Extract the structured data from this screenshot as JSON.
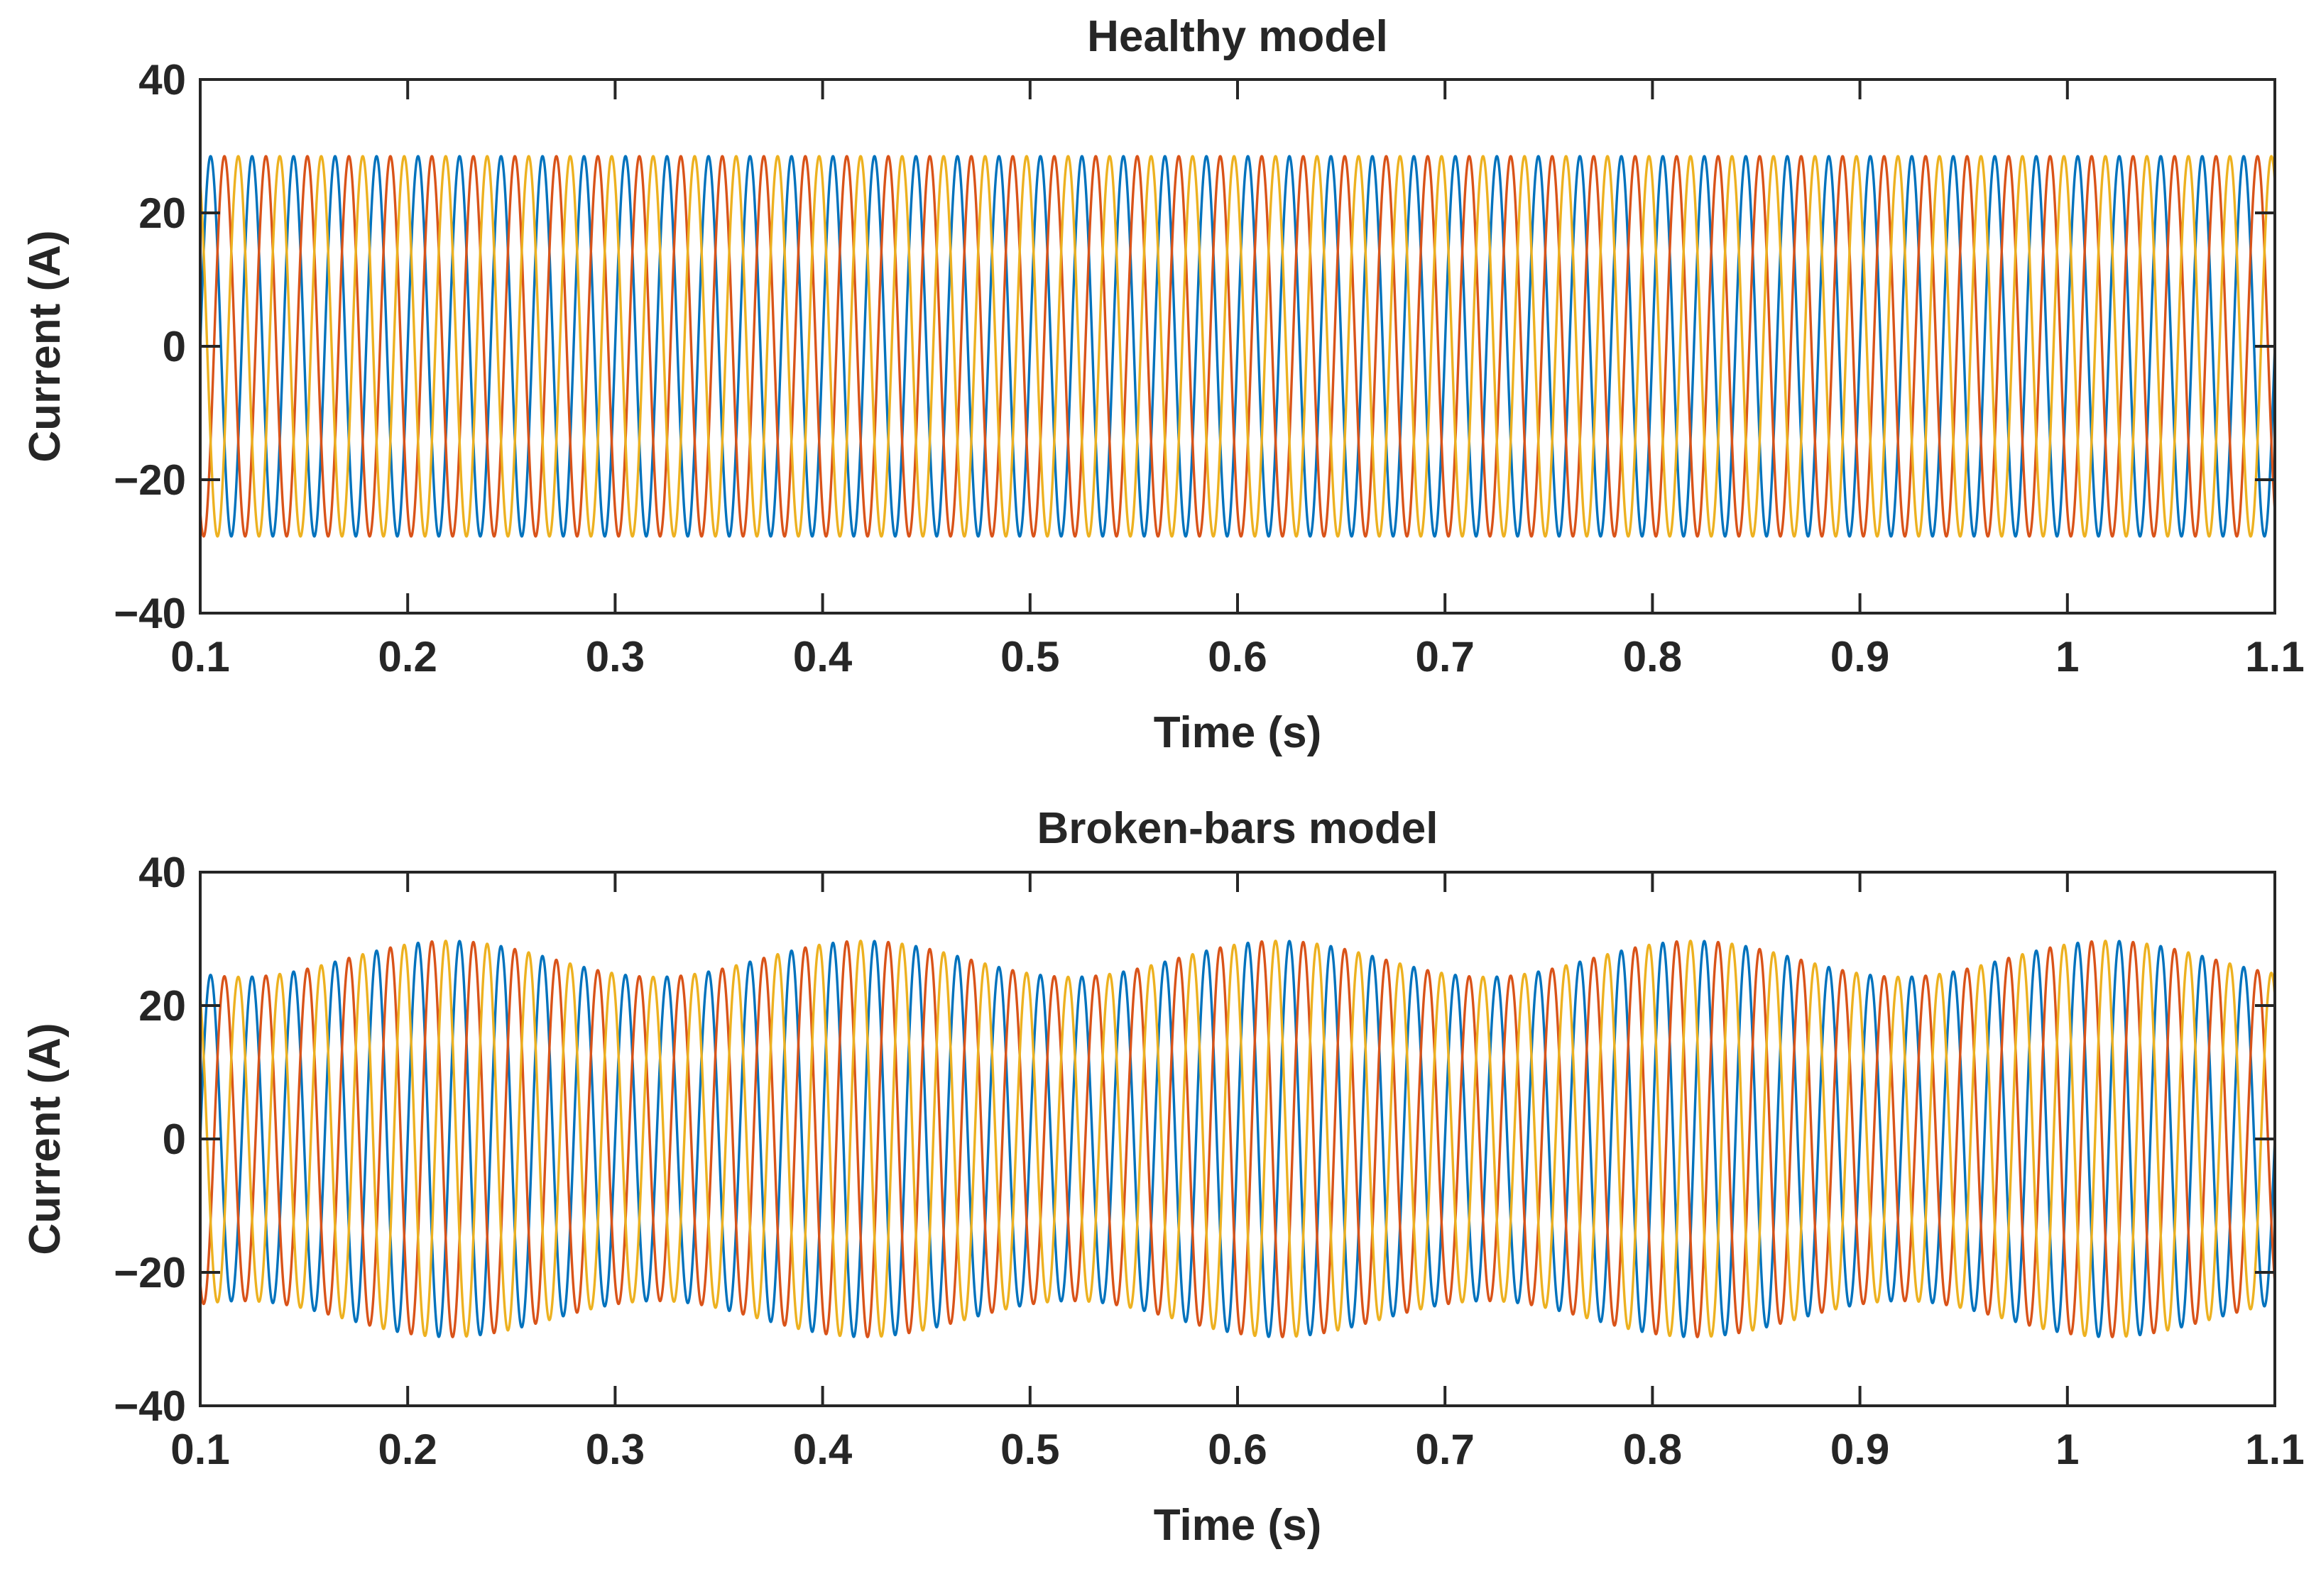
{
  "chart_data": [
    {
      "type": "line",
      "title": "Healthy model",
      "xlabel": "Time (s)",
      "ylabel": "Current (A)",
      "xlim": [
        0.1,
        1.1
      ],
      "ylim": [
        -40,
        40
      ],
      "xticks": [
        0.1,
        0.2,
        0.3,
        0.4,
        0.5,
        0.6,
        0.7,
        0.8,
        0.9,
        1,
        1.1
      ],
      "xtick_labels": [
        "0.1",
        "0.2",
        "0.3",
        "0.4",
        "0.5",
        "0.6",
        "0.7",
        "0.8",
        "0.9",
        "1",
        "1.1"
      ],
      "yticks": [
        -40,
        -20,
        0,
        20,
        40
      ],
      "ytick_labels": [
        "−40",
        "−20",
        "0",
        "20",
        "40"
      ],
      "grid": false,
      "legend": "none",
      "signal": {
        "waveform": "sinusoid",
        "frequency_hz": 50,
        "amplitude_a": 28.5,
        "modulation_depth": 0,
        "modulation_frequency_hz": 0
      },
      "series": [
        {
          "phase_deg": 0,
          "color": "#0072BD"
        },
        {
          "phase_deg": -120,
          "color": "#D95319"
        },
        {
          "phase_deg": 120,
          "color": "#EDB120"
        }
      ]
    },
    {
      "type": "line",
      "title": "Broken-bars model",
      "xlabel": "Time (s)",
      "ylabel": "Current (A)",
      "xlim": [
        0.1,
        1.1
      ],
      "ylim": [
        -40,
        40
      ],
      "xticks": [
        0.1,
        0.2,
        0.3,
        0.4,
        0.5,
        0.6,
        0.7,
        0.8,
        0.9,
        1,
        1.1
      ],
      "xtick_labels": [
        "0.1",
        "0.2",
        "0.3",
        "0.4",
        "0.5",
        "0.6",
        "0.7",
        "0.8",
        "0.9",
        "1",
        "1.1"
      ],
      "yticks": [
        -40,
        -20,
        0,
        20,
        40
      ],
      "ytick_labels": [
        "−40",
        "−20",
        "0",
        "20",
        "40"
      ],
      "grid": false,
      "legend": "none",
      "signal": {
        "waveform": "amplitude-modulated sinusoid",
        "frequency_hz": 50,
        "amplitude_a": 27,
        "modulation_depth": 0.1,
        "modulation_frequency_hz": 5
      },
      "series": [
        {
          "phase_deg": 0,
          "color": "#0072BD"
        },
        {
          "phase_deg": -120,
          "color": "#D95319"
        },
        {
          "phase_deg": 120,
          "color": "#EDB120"
        }
      ]
    }
  ]
}
